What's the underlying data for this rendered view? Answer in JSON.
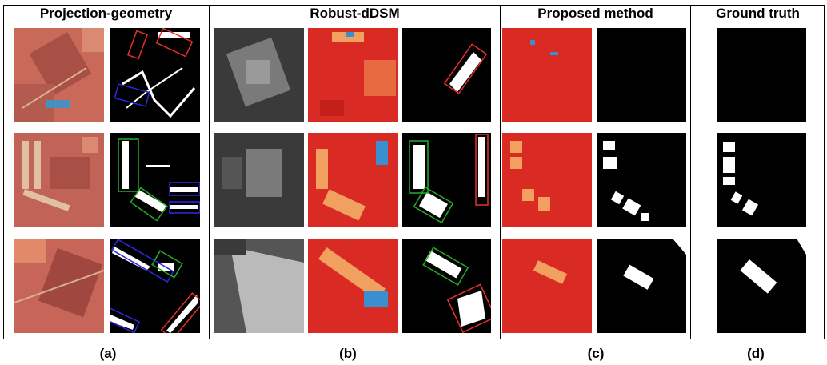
{
  "columns": [
    {
      "header": "Projection-geometry",
      "caption": "(a)"
    },
    {
      "header": "Robust-dDSM",
      "caption": "(b)"
    },
    {
      "header": "Proposed method",
      "caption": "(c)"
    },
    {
      "header": "Ground truth",
      "caption": "(d)"
    }
  ],
  "colors": {
    "mask_foreground": "#ffffff",
    "mask_background": "#000000",
    "box_red": "#e8302a",
    "box_green": "#21b02a",
    "box_blue": "#2a2ae0",
    "heat_base": "#d92a23",
    "heat_high": "#f2a060",
    "heat_low": "#3a8fd0"
  }
}
